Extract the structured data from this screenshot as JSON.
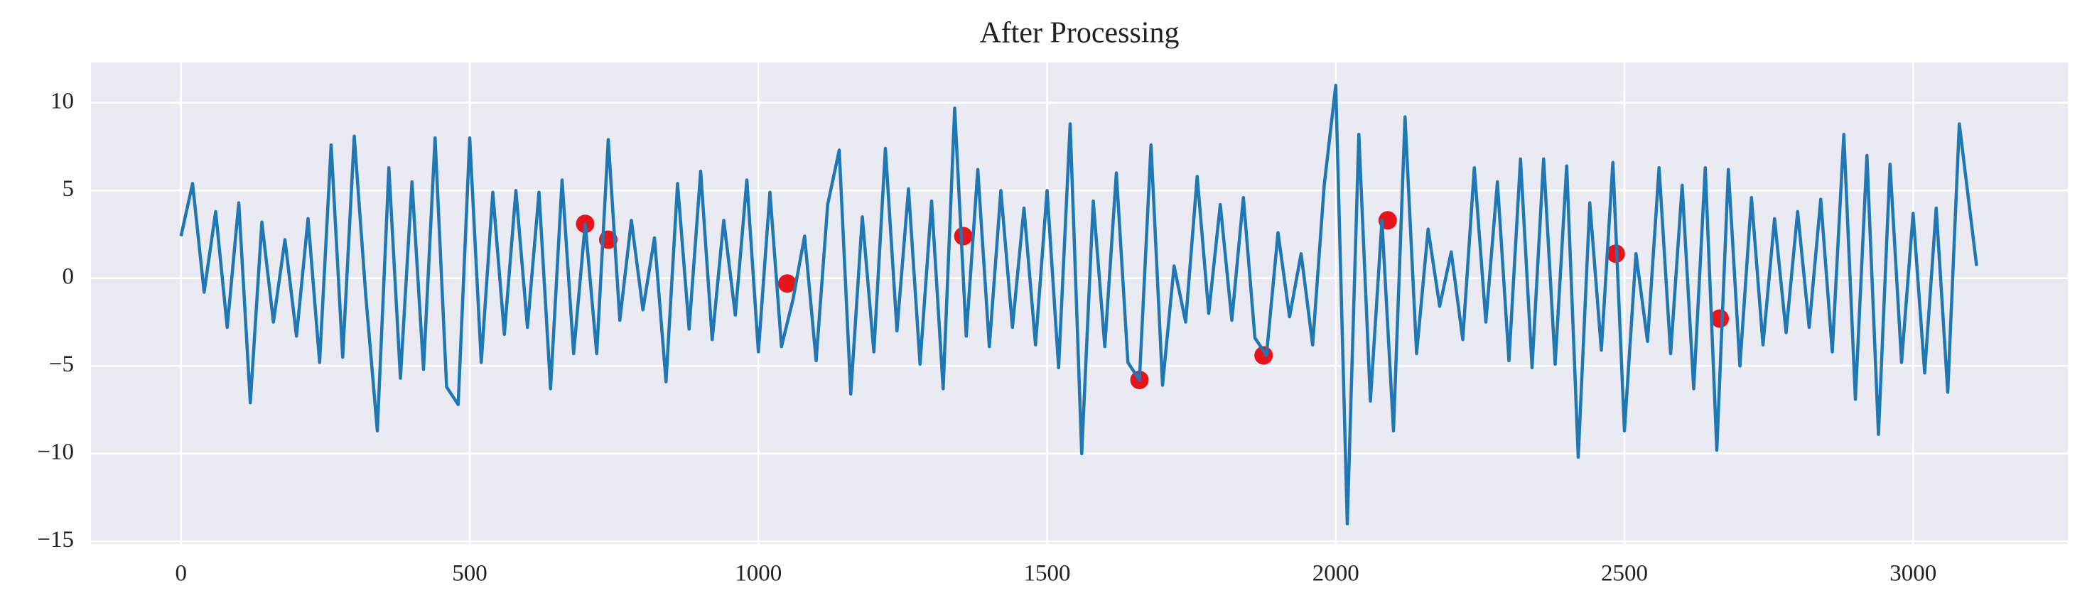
{
  "chart_data": {
    "type": "line",
    "title": "After Processing",
    "x": [
      0,
      20,
      40,
      60,
      80,
      100,
      120,
      140,
      160,
      180,
      200,
      220,
      240,
      260,
      280,
      300,
      320,
      340,
      360,
      380,
      400,
      420,
      440,
      460,
      480,
      500,
      520,
      540,
      560,
      580,
      600,
      620,
      640,
      660,
      680,
      700,
      720,
      740,
      760,
      780,
      800,
      820,
      840,
      860,
      880,
      900,
      920,
      940,
      960,
      980,
      1000,
      1020,
      1040,
      1060,
      1080,
      1100,
      1120,
      1140,
      1160,
      1180,
      1200,
      1220,
      1240,
      1260,
      1280,
      1300,
      1320,
      1340,
      1360,
      1380,
      1400,
      1420,
      1440,
      1460,
      1480,
      1500,
      1520,
      1540,
      1560,
      1580,
      1600,
      1620,
      1640,
      1660,
      1680,
      1700,
      1720,
      1740,
      1760,
      1780,
      1800,
      1820,
      1840,
      1860,
      1880,
      1900,
      1920,
      1940,
      1960,
      1980,
      2000,
      2020,
      2040,
      2060,
      2080,
      2100,
      2120,
      2140,
      2160,
      2180,
      2200,
      2220,
      2240,
      2260,
      2280,
      2300,
      2320,
      2340,
      2360,
      2380,
      2400,
      2420,
      2440,
      2460,
      2480,
      2500,
      2520,
      2540,
      2560,
      2580,
      2600,
      2620,
      2640,
      2660,
      2680,
      2700,
      2720,
      2740,
      2760,
      2780,
      2800,
      2820,
      2840,
      2860,
      2880,
      2900,
      2920,
      2940,
      2960,
      2980,
      3000,
      3020,
      3040,
      3060,
      3080,
      3100,
      3110
    ],
    "series": [
      {
        "color": "#1f77b4",
        "values": [
          2.4,
          5.4,
          -0.8,
          3.8,
          -2.8,
          4.3,
          -7.1,
          3.2,
          -2.5,
          2.2,
          -3.3,
          3.4,
          -4.8,
          7.6,
          -4.5,
          8.1,
          -1.0,
          -8.7,
          6.3,
          -5.7,
          5.5,
          -5.2,
          8.0,
          -6.2,
          -7.2,
          8.0,
          -4.8,
          4.9,
          -3.2,
          5.0,
          -2.8,
          4.9,
          -6.3,
          5.6,
          -4.3,
          3.1,
          -4.3,
          7.9,
          -2.4,
          3.3,
          -1.8,
          2.3,
          -5.9,
          5.4,
          -2.9,
          6.1,
          -3.5,
          3.3,
          -2.1,
          5.6,
          -4.2,
          4.9,
          -3.9,
          -1.2,
          2.4,
          -4.7,
          4.2,
          7.3,
          -6.6,
          3.5,
          -4.2,
          7.4,
          -3.0,
          5.1,
          -4.9,
          4.4,
          -6.3,
          9.7,
          -3.3,
          6.2,
          -3.9,
          5.0,
          -2.8,
          4.0,
          -3.8,
          5.0,
          -5.1,
          8.8,
          -10.0,
          4.4,
          -3.9,
          6.0,
          -4.8,
          -5.8,
          7.6,
          -6.1,
          0.7,
          -2.5,
          5.8,
          -2.0,
          4.2,
          -2.4,
          4.6,
          -3.4,
          -4.4,
          2.6,
          -2.2,
          1.4,
          -3.8,
          5.3,
          11.0,
          -14.0,
          8.2,
          -7.0,
          3.3,
          -8.7,
          9.2,
          -4.3,
          2.8,
          -1.6,
          1.5,
          -3.5,
          6.3,
          -2.5,
          5.5,
          -4.7,
          6.8,
          -5.1,
          6.8,
          -4.9,
          6.4,
          -10.2,
          4.3,
          -4.1,
          6.6,
          -8.7,
          1.4,
          -3.6,
          6.3,
          -4.3,
          5.3,
          -6.3,
          6.3,
          -9.8,
          6.2,
          -5.0,
          4.6,
          -3.8,
          3.4,
          -3.1,
          3.8,
          -2.8,
          4.5,
          -4.2,
          8.2,
          -6.9,
          7.0,
          -8.9,
          6.5,
          -4.8,
          3.7,
          -5.4,
          4.0,
          -6.5,
          8.8,
          3.4,
          0.7
        ]
      }
    ],
    "scatter": {
      "color": "#e8141c",
      "x": [
        700,
        740,
        1050,
        1355,
        1660,
        1875,
        2090,
        2485,
        2665
      ],
      "y": [
        3.1,
        2.2,
        -0.3,
        2.4,
        -5.8,
        -4.4,
        3.3,
        1.4,
        -2.3
      ]
    },
    "xlim": [
      -156,
      3268
    ],
    "ylim": [
      -15.15,
      12.3
    ],
    "xticks": [
      0,
      500,
      1000,
      1500,
      2000,
      2500,
      3000
    ],
    "yticks": [
      {
        "value": -15,
        "label": "−15"
      },
      {
        "value": -10,
        "label": "−10"
      },
      {
        "value": -5,
        "label": "−5"
      },
      0,
      5,
      10
    ],
    "grid": true,
    "background": "#eaeaf2"
  }
}
